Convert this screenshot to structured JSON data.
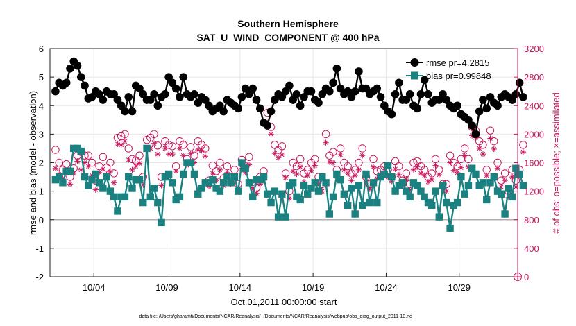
{
  "chart_data": {
    "type": "line",
    "title": "Southern Hemisphere",
    "subtitle": "SAT_U_WIND_COMPONENT @ 400 hPa",
    "xlabel": "Oct.01,2011 00:00:00 start",
    "ylabel": "rmse and bias (model - observation)",
    "ylabel_right": "# of obs: o=possible; ×=assimilated",
    "footnote": "data file: /Users/gharamti/Documents/NCAR/Reanalysis/~/Documents/NCAR/Reanalysis/webpub/obs_diag_output_2011-10.nc",
    "xlim": [
      1,
      33
    ],
    "ylim": [
      -2,
      6
    ],
    "ylim_right": [
      0,
      3200
    ],
    "x_ticks": [
      4,
      9,
      14,
      19,
      24,
      29
    ],
    "x_tick_labels": [
      "10/04",
      "10/09",
      "10/14",
      "10/19",
      "10/24",
      "10/29"
    ],
    "y_ticks": [
      "-2",
      "-1",
      "0",
      "1",
      "2",
      "3",
      "4",
      "5",
      "6"
    ],
    "y_ticks_right": [
      "0",
      "400",
      "800",
      "1200",
      "1600",
      "2000",
      "2400",
      "2800",
      "3200"
    ],
    "grid": true,
    "legend_position": "top-right",
    "colors": {
      "rmse": "#000000",
      "bias": "#1a8080",
      "nobs": "#c8175d",
      "zero_line": "#b0b0b0"
    },
    "series": [
      {
        "name": "rmse pr=4.2815",
        "label": "rmse pr=4.2815",
        "marker": "circle",
        "step": 0.25,
        "x_start": 1.375,
        "values": [
          4.5,
          4.8,
          4.7,
          4.8,
          5.3,
          5.55,
          5.4,
          5.0,
          4.7,
          4.25,
          4.3,
          4.5,
          4.4,
          4.2,
          4.5,
          4.4,
          4.4,
          4.2,
          4.0,
          3.8,
          4.3,
          3.8,
          4.7,
          4.6,
          4.4,
          4.2,
          4.2,
          4.4,
          4.0,
          4.3,
          4.4,
          5.0,
          4.8,
          4.6,
          4.3,
          5.0,
          4.4,
          4.3,
          4.4,
          4.1,
          4.3,
          4.2,
          4.0,
          3.8,
          3.9,
          4.0,
          3.8,
          4.2,
          4.1,
          4.0,
          3.9,
          4.3,
          4.6,
          4.4,
          4.6,
          4.2,
          3.9,
          3.4,
          3.3,
          3.8,
          4.2,
          4.4,
          4.3,
          4.5,
          4.7,
          4.2,
          4.4,
          4.0,
          4.3,
          4.5,
          4.5,
          4.2,
          4.1,
          4.4,
          4.6,
          4.5,
          4.8,
          5.3,
          4.6,
          4.4,
          4.5,
          4.3,
          4.5,
          5.2,
          4.6,
          4.6,
          4.4,
          4.5,
          4.6,
          4.3,
          4.0,
          3.8,
          3.7,
          4.4,
          4.8,
          4.2,
          4.2,
          4.4,
          4.0,
          3.9,
          4.4,
          4.9,
          4.4,
          4.1,
          4.2,
          4.2,
          4.4,
          4.2,
          4.0,
          3.9,
          4.0,
          3.7,
          3.6,
          3.5,
          3.3,
          3.0,
          3.8,
          4.2,
          3.9,
          4.3,
          4.1,
          4.0,
          4.3,
          4.4,
          4.3,
          4.2,
          4.4,
          4.8,
          4.3
        ]
      },
      {
        "name": "bias pr=0.99848",
        "label": "bias pr=0.99848",
        "marker": "square",
        "step": 0.25,
        "x_start": 1.375,
        "values": [
          1.4,
          1.5,
          1.3,
          1.7,
          1.7,
          2.5,
          2.5,
          2.4,
          1.5,
          1.2,
          1.4,
          1.6,
          1.3,
          1.1,
          1.5,
          1.0,
          0.8,
          0.3,
          0.8,
          0.8,
          1.5,
          1.1,
          1.4,
          1.4,
          0.6,
          2.5,
          0.8,
          1.1,
          0.6,
          -0.1,
          1.5,
          1.6,
          1.3,
          0.7,
          0.8,
          1.6,
          2.0,
          2.0,
          1.6,
          0.9,
          1.1,
          1.3,
          1.3,
          1.4,
          1.1,
          1.0,
          1.3,
          1.5,
          1.3,
          1.5,
          1.0,
          2.0,
          1.8,
          1.3,
          0.8,
          1.4,
          1.4,
          1.5,
          0.9,
          0.6,
          1.0,
          0.1,
          0.9,
          0.1,
          1.2,
          1.3,
          0.8,
          0.7,
          1.2,
          0.9,
          1.1,
          1.3,
          1.0,
          1.5,
          1.3,
          0.2,
          0.8,
          1.6,
          1.4,
          0.9,
          0.5,
          1.1,
          0.2,
          1.2,
          0.5,
          1.6,
          0.6,
          1.3,
          0.6,
          1.5,
          1.6,
          1.9,
          1.5,
          1.0,
          1.2,
          1.3,
          1.0,
          0.8,
          1.3,
          1.2,
          1.0,
          0.8,
          0.6,
          0.5,
          1.0,
          0.1,
          1.2,
          0.6,
          -0.3,
          0.5,
          0.6,
          1.5,
          0.9,
          1.2,
          1.8,
          1.6,
          1.2,
          1.3,
          0.7,
          1.3,
          1.5,
          1.0,
          0.9,
          0.2,
          1.1,
          0.8,
          1.8,
          1.6,
          1.2
        ]
      }
    ],
    "nobs": {
      "name": "# of obs",
      "axis": "right",
      "step": 0.25,
      "x_start": 1.375,
      "possible": [
        1780,
        1600,
        1500,
        1580,
        1400,
        1520,
        1700,
        1750,
        1700,
        1700,
        1600,
        1350,
        1550,
        1680,
        1530,
        1600,
        1450,
        1950,
        1970,
        2000,
        1800,
        1650,
        1630,
        1700,
        1400,
        1920,
        1950,
        2000,
        1840,
        1400,
        1900,
        1850,
        1830,
        1550,
        1900,
        1850,
        1650,
        1820,
        1700,
        1900,
        1850,
        1800,
        1350,
        1560,
        1480,
        1600,
        1380,
        1550,
        1400,
        1500,
        1300,
        1640,
        1550,
        1680,
        1300,
        1250,
        1400,
        1480,
        2300,
        2100,
        1850,
        1780,
        1830,
        1450,
        1200,
        1600,
        1550,
        1650,
        1450,
        1500,
        1600,
        1650,
        1400,
        1300,
        2000,
        1700,
        1750,
        1500,
        1800,
        1600,
        1550,
        1450,
        1500,
        1600,
        1800,
        1400,
        1300,
        1650,
        1480,
        1500,
        1550,
        1500,
        1400,
        1620,
        1550,
        1350,
        1450,
        1300,
        1600,
        1620,
        1550,
        1500,
        1400,
        1450,
        1650,
        1500,
        1300,
        1300,
        1700,
        1600,
        1550,
        1650,
        1800,
        1650,
        2100,
        2050,
        1900,
        1850,
        1500,
        2050,
        1900,
        1600,
        1350,
        1450,
        1200,
        1500,
        1350,
        1500,
        1850
      ],
      "assimilated": [
        1520,
        1430,
        1380,
        1460,
        1300,
        1450,
        1620,
        1500,
        1600,
        1550,
        1420,
        1220,
        1460,
        1510,
        1430,
        1470,
        1320,
        1860,
        1850,
        1900,
        1640,
        1500,
        1550,
        1590,
        1290,
        1800,
        1800,
        1870,
        1720,
        1280,
        1800,
        1720,
        1720,
        1480,
        1800,
        1700,
        1560,
        1730,
        1600,
        1780,
        1770,
        1690,
        1270,
        1450,
        1350,
        1500,
        1280,
        1460,
        1300,
        1420,
        1200,
        1520,
        1460,
        1570,
        1230,
        1170,
        1300,
        1380,
        2160,
        2000,
        1730,
        1670,
        1710,
        1390,
        1100,
        1480,
        1440,
        1540,
        1330,
        1420,
        1490,
        1560,
        1310,
        1200,
        1880,
        1610,
        1600,
        1410,
        1710,
        1500,
        1450,
        1350,
        1420,
        1500,
        1700,
        1330,
        1230,
        1540,
        1380,
        1400,
        1460,
        1400,
        1340,
        1510,
        1430,
        1280,
        1370,
        1220,
        1500,
        1540,
        1450,
        1420,
        1330,
        1360,
        1560,
        1430,
        1240,
        1200,
        1600,
        1490,
        1460,
        1530,
        1700,
        1540,
        1980,
        1950,
        1800,
        1720,
        1420,
        1940,
        1790,
        1520,
        1260,
        1350,
        1110,
        1400,
        1260,
        1420,
        1750
      ]
    }
  }
}
